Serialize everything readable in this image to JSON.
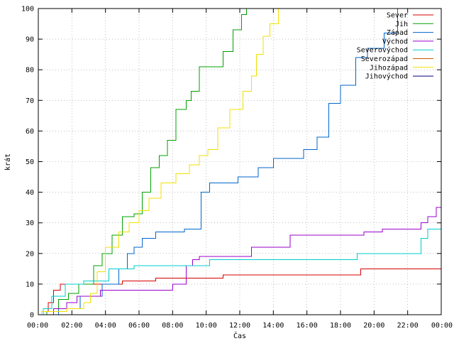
{
  "chart_data": {
    "type": "line",
    "title": "",
    "xlabel": "Čas",
    "ylabel": "krát",
    "xlim": [
      0,
      24
    ],
    "ylim": [
      0,
      100
    ],
    "x_ticks": [
      "00:00",
      "02:00",
      "04:00",
      "06:00",
      "08:00",
      "10:00",
      "12:00",
      "14:00",
      "16:00",
      "18:00",
      "20:00",
      "22:00",
      "00:00"
    ],
    "y_ticks": [
      0,
      10,
      20,
      30,
      40,
      50,
      60,
      70,
      80,
      90,
      100
    ],
    "grid": true,
    "legend_position": "top-right",
    "series": [
      {
        "name": "Sever",
        "color": "#d40000",
        "x": [
          0,
          0.3,
          0.6,
          0.9,
          1.3,
          2.8,
          5.0,
          7.0,
          9.5,
          11.0,
          19.2,
          24
        ],
        "y": [
          0,
          1,
          4,
          8,
          10,
          10,
          11,
          12,
          12,
          13,
          15,
          15
        ]
      },
      {
        "name": "Jih",
        "color": "#00a000",
        "x": [
          0,
          0.5,
          1.2,
          1.8,
          2.4,
          3.3,
          3.8,
          4.4,
          5.0,
          5.7,
          6.2,
          6.7,
          7.2,
          7.7,
          8.2,
          8.8,
          9.1,
          9.6,
          10.6,
          11.0,
          11.6,
          12.1,
          12.4,
          24
        ],
        "y": [
          0,
          1,
          5,
          7,
          10,
          16,
          20,
          26,
          32,
          33,
          40,
          48,
          52,
          57,
          67,
          70,
          73,
          81,
          81,
          86,
          93,
          98,
          100,
          100
        ]
      },
      {
        "name": "Západ",
        "color": "#0066cc",
        "x": [
          0,
          1.2,
          2.5,
          3.8,
          4.8,
          5.3,
          5.7,
          6.2,
          7.0,
          8.7,
          9.7,
          10.2,
          10.8,
          11.9,
          13.1,
          14.0,
          14.9,
          15.8,
          16.6,
          17.3,
          18.0,
          18.9,
          19.6,
          20.6,
          21.4,
          24
        ],
        "y": [
          0,
          2,
          6,
          10,
          15,
          20,
          22,
          25,
          27,
          28,
          40,
          43,
          43,
          45,
          48,
          51,
          51,
          54,
          58,
          69,
          75,
          84,
          87,
          92,
          100,
          100
        ]
      },
      {
        "name": "Východ",
        "color": "#9900cc",
        "x": [
          0,
          0.9,
          1.7,
          2.3,
          3.7,
          5.7,
          8.0,
          8.8,
          9.2,
          9.6,
          12.7,
          15.0,
          19.4,
          20.5,
          22.8,
          23.2,
          23.7,
          24
        ],
        "y": [
          0,
          2,
          4,
          6,
          8,
          8,
          10,
          16,
          18,
          19,
          22,
          26,
          27,
          28,
          30,
          32,
          35,
          35
        ]
      },
      {
        "name": "Severovýchod",
        "color": "#00cccc",
        "x": [
          0,
          0.3,
          0.8,
          1.6,
          2.7,
          3.9,
          4.2,
          5.7,
          9.5,
          10.2,
          19.0,
          22.8,
          23.2,
          24
        ],
        "y": [
          0,
          2,
          6,
          10,
          11,
          11,
          15,
          16,
          16,
          18,
          20,
          25,
          28,
          29
        ]
      },
      {
        "name": "Severozápad",
        "color": "#cc5500",
        "x": [
          0,
          1.2,
          2.9,
          3.8,
          24
        ],
        "y": [
          0,
          0,
          0,
          0,
          0
        ]
      },
      {
        "name": "Jihozápad",
        "color": "#f0e000",
        "x": [
          0,
          0.2,
          1.7,
          2.7,
          3.1,
          3.5,
          4.0,
          4.8,
          5.4,
          6.0,
          6.6,
          7.3,
          8.2,
          9.0,
          9.6,
          10.1,
          10.7,
          11.4,
          12.2,
          12.7,
          13.0,
          13.4,
          13.8,
          14.3,
          24
        ],
        "y": [
          0,
          1,
          2,
          4,
          7,
          14,
          22,
          27,
          30,
          34,
          38,
          43,
          46,
          49,
          52,
          54,
          61,
          67,
          73,
          78,
          85,
          91,
          95,
          100,
          100
        ]
      },
      {
        "name": "Jihovýchod",
        "color": "#000088",
        "x": [
          0,
          24
        ],
        "y": [
          0,
          0
        ]
      }
    ]
  }
}
